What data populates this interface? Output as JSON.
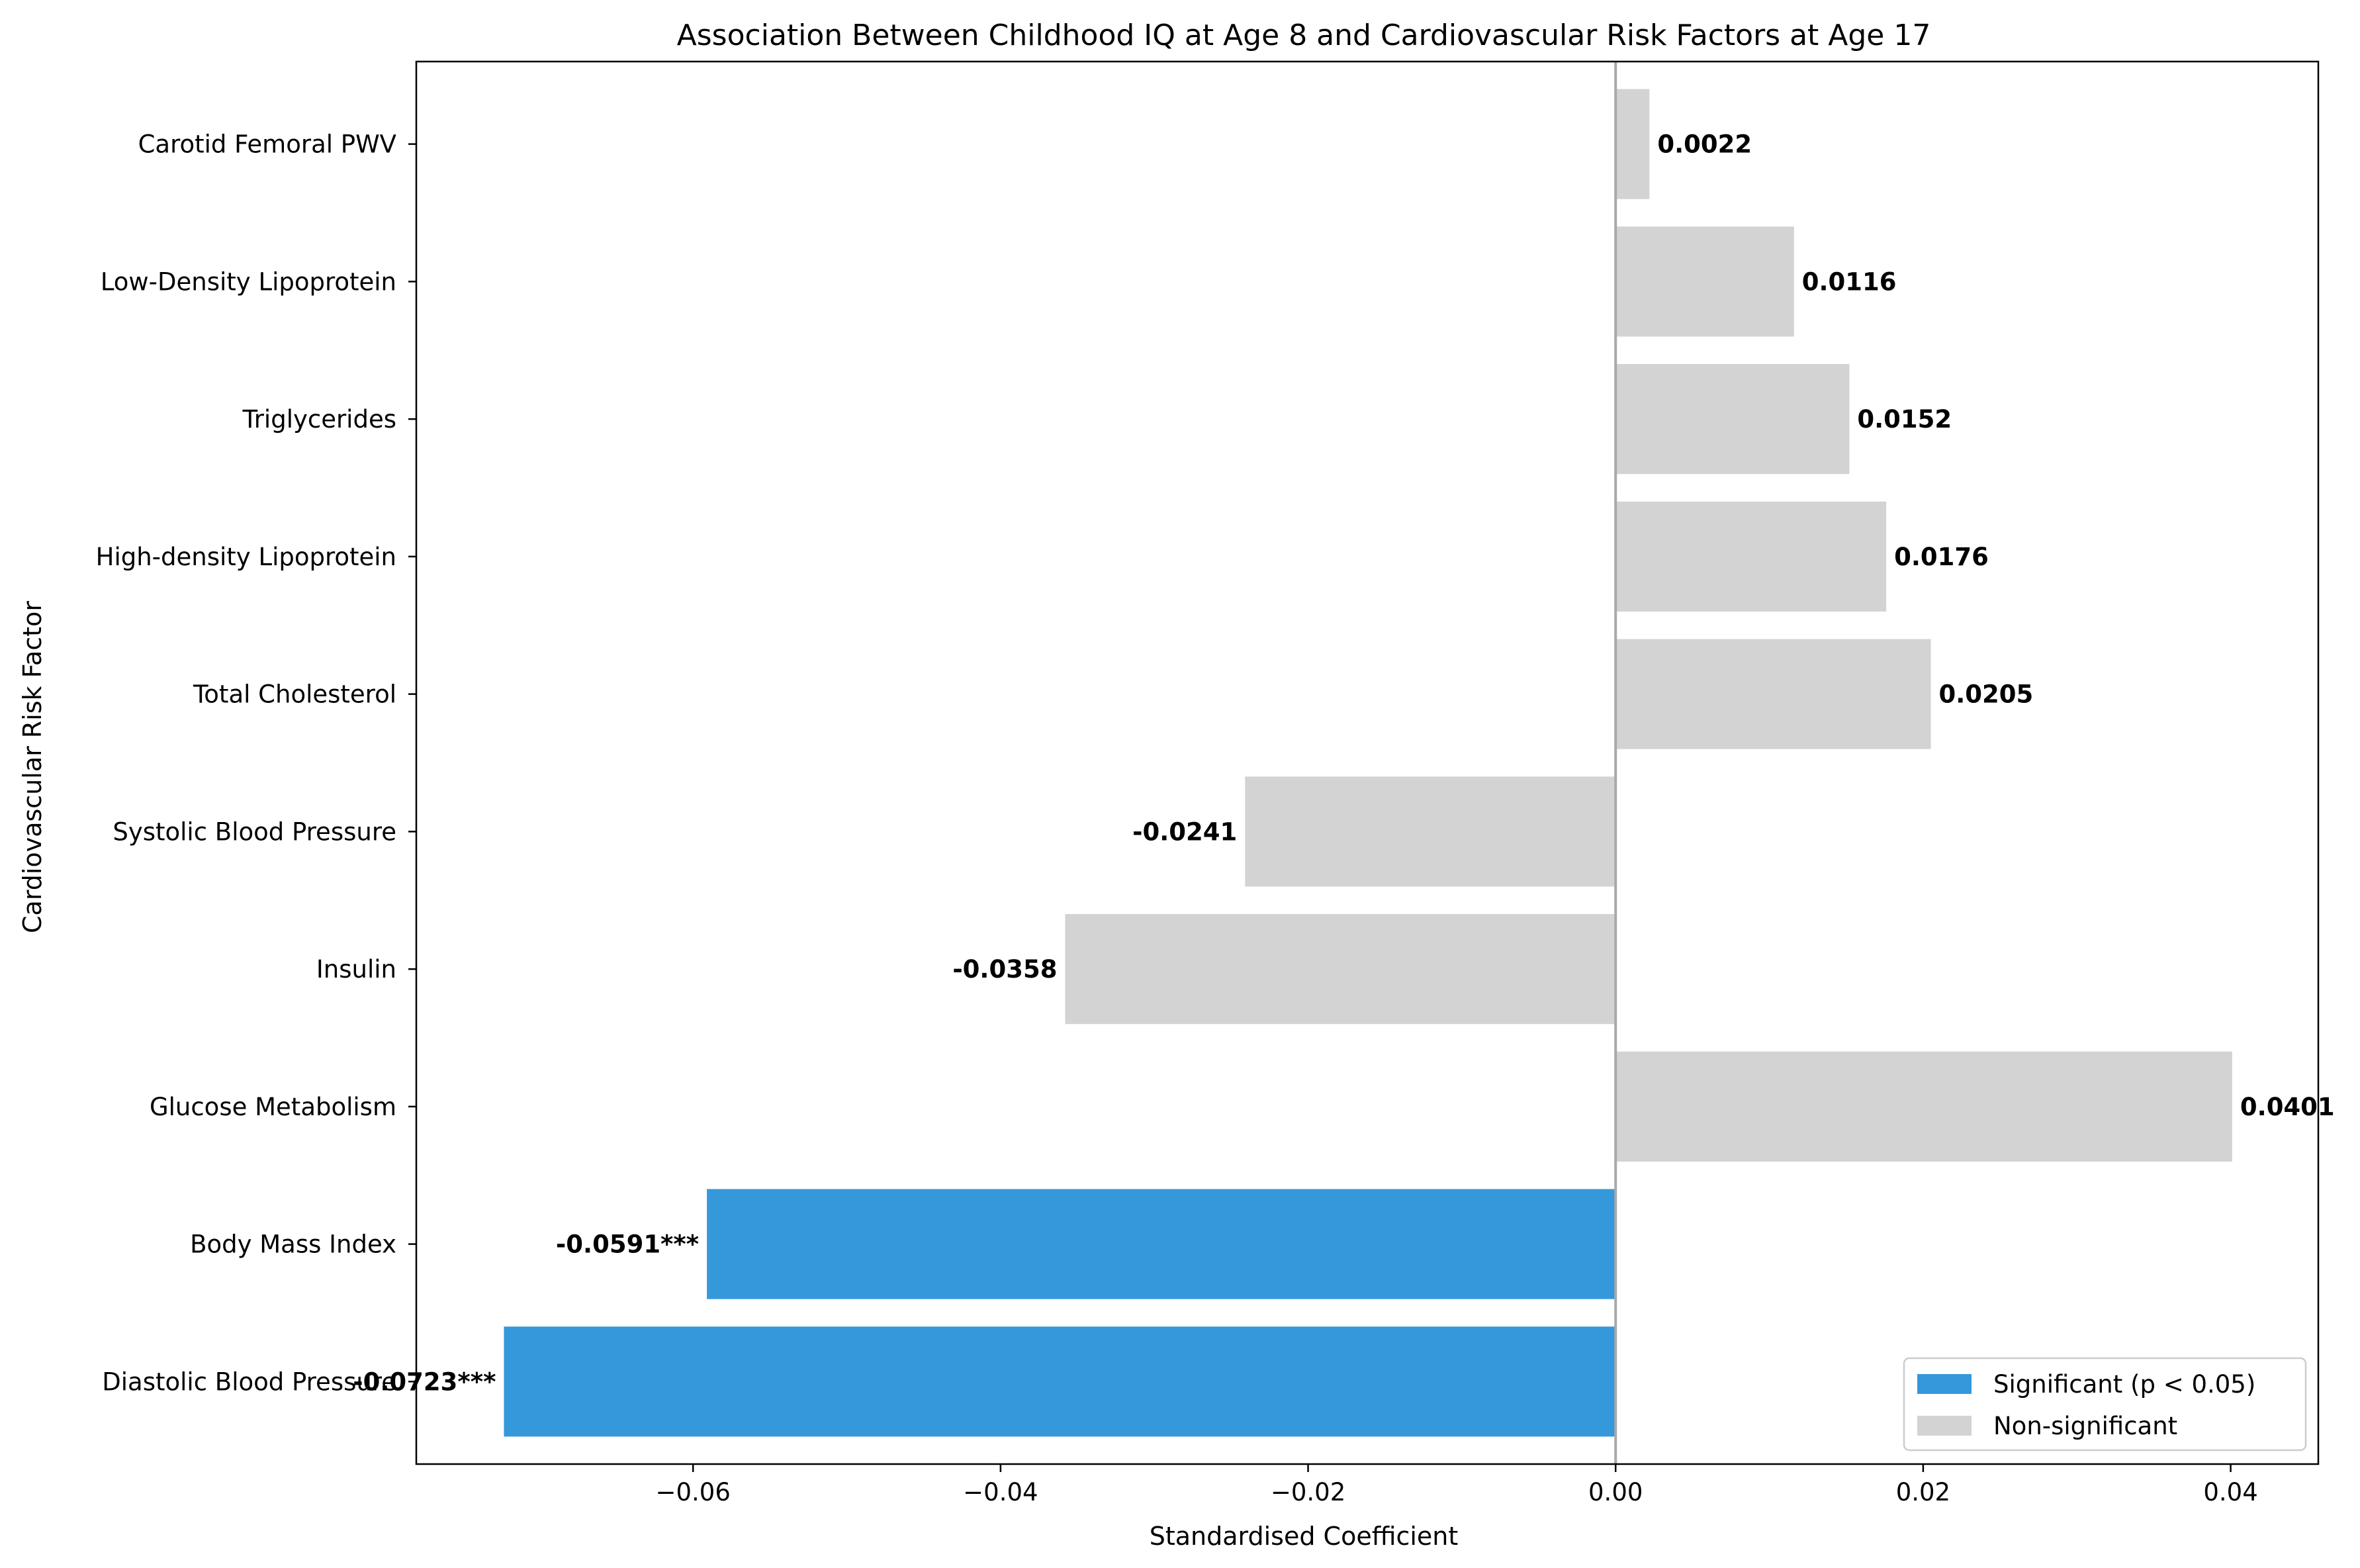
{
  "colors": {
    "significant": "#3598db",
    "non_significant": "#d3d3d3",
    "zero_line": "#a9a9a9",
    "axes": "#000000",
    "background": "#ffffff"
  },
  "chart_data": {
    "type": "bar",
    "orientation": "horizontal",
    "title": "Association Between Childhood IQ at Age 8 and Cardiovascular Risk Factors at Age 17",
    "xlabel": "Standardised Coefficient",
    "ylabel": "Cardiovascular Risk Factor",
    "xlim": [
      -0.078,
      0.0457
    ],
    "grid": false,
    "legend_position": "lower right",
    "x_ticks": [
      -0.06,
      -0.04,
      -0.02,
      0.0,
      0.02,
      0.04
    ],
    "x_tick_labels": [
      "−0.06",
      "−0.04",
      "−0.02",
      "0.00",
      "0.02",
      "0.04"
    ],
    "categories": [
      "Diastolic Blood Pressure",
      "Body Mass Index",
      "Glucose Metabolism",
      "Insulin",
      "Systolic Blood Pressure",
      "Total Cholesterol",
      "High-density Lipoprotein",
      "Triglycerides",
      "Low-Density Lipoprotein",
      "Carotid Femoral PWV"
    ],
    "values": [
      -0.0723,
      -0.0591,
      0.0401,
      -0.0358,
      -0.0241,
      0.0205,
      0.0176,
      0.0152,
      0.0116,
      0.0022
    ],
    "significant": [
      true,
      true,
      false,
      false,
      false,
      false,
      false,
      false,
      false,
      false
    ],
    "data_labels": [
      "-0.0723***",
      "-0.0591***",
      "0.0401",
      "-0.0358",
      "-0.0241",
      "0.0205",
      "0.0176",
      "0.0152",
      "0.0116",
      "0.0022"
    ],
    "legend": [
      {
        "label": "Significant (p < 0.05)",
        "color_key": "significant"
      },
      {
        "label": "Non-significant",
        "color_key": "non_significant"
      }
    ]
  }
}
